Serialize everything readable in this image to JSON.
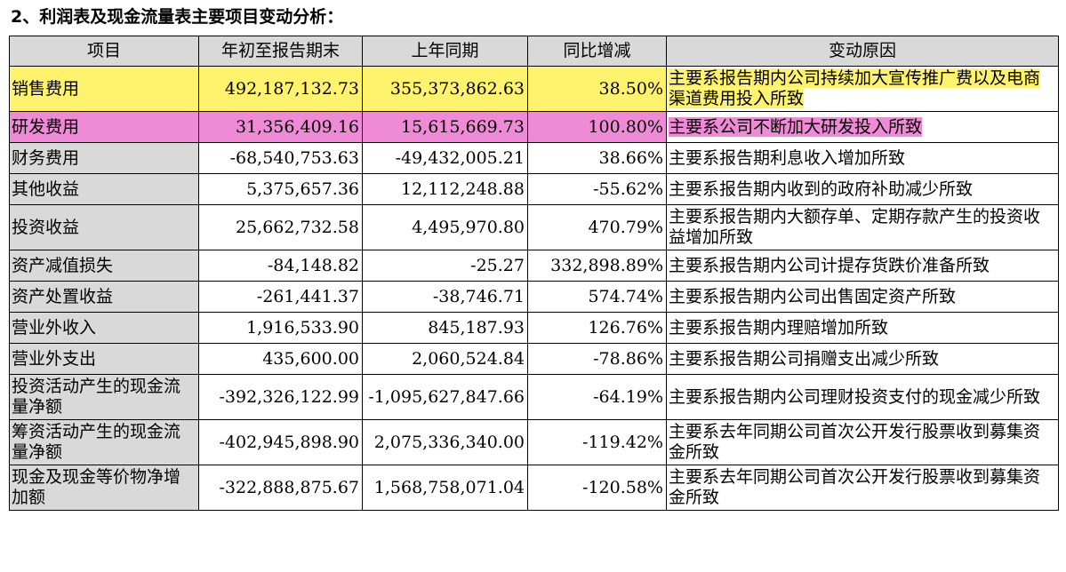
{
  "title": "2、利润表及现金流量表主要项目变动分析：",
  "headers": [
    "项目",
    "年初至报告期末",
    "上年同期",
    "同比增减",
    "变动原因"
  ],
  "rows": [
    {
      "item": "销售费用",
      "current": "492,187,132.73",
      "prior": "355,373,862.63",
      "change": "38.50%",
      "reason": "主要系报告期内公司持续加大宣传推广费以及电商渠道费用投入所致",
      "highlight": "#fff36d"
    },
    {
      "item": "研发费用",
      "current": "31,356,409.16",
      "prior": "15,615,669.73",
      "change": "100.80%",
      "reason": "主要系公司不断加大研发投入所致",
      "highlight": "#ee8ad6"
    },
    {
      "item": "财务费用",
      "current": "-68,540,753.63",
      "prior": "-49,432,005.21",
      "change": "38.66%",
      "reason": "主要系报告期利息收入增加所致"
    },
    {
      "item": "其他收益",
      "current": "5,375,657.36",
      "prior": "12,112,248.88",
      "change": "-55.62%",
      "reason": "主要系报告期内收到的政府补助减少所致"
    },
    {
      "item": "投资收益",
      "current": "25,662,732.58",
      "prior": "4,495,970.80",
      "change": "470.79%",
      "reason": "主要系报告期内大额存单、定期存款产生的投资收益增加所致"
    },
    {
      "item": "资产减值损失",
      "current": "-84,148.82",
      "prior": "-25.27",
      "change": "332,898.89%",
      "reason": "主要系报告期内公司计提存货跌价准备所致"
    },
    {
      "item": "资产处置收益",
      "current": "-261,441.37",
      "prior": "-38,746.71",
      "change": "574.74%",
      "reason": "主要系报告期内公司出售固定资产所致"
    },
    {
      "item": "营业外收入",
      "current": "1,916,533.90",
      "prior": "845,187.93",
      "change": "126.76%",
      "reason": "主要系报告期内理赔增加所致"
    },
    {
      "item": "营业外支出",
      "current": "435,600.00",
      "prior": "2,060,524.84",
      "change": "-78.86%",
      "reason": "主要系报告期公司捐赠支出减少所致"
    },
    {
      "item": "投资活动产生的现金流量净额",
      "current": "-392,326,122.99",
      "prior": "-1,095,627,847.66",
      "change": "-64.19%",
      "reason": "主要系报告期内公司理财投资支付的现金减少所致"
    },
    {
      "item": "筹资活动产生的现金流量净额",
      "current": "-402,945,898.90",
      "prior": "2,075,336,340.00",
      "change": "-119.42%",
      "reason": "主要系去年同期公司首次公开发行股票收到募集资金所致"
    },
    {
      "item": "现金及现金等价物净增加额",
      "current": "-322,888,875.67",
      "prior": "1,568,758,071.04",
      "change": "-120.58%",
      "reason": "主要系去年同期公司首次公开发行股票收到募集资金所致"
    }
  ]
}
